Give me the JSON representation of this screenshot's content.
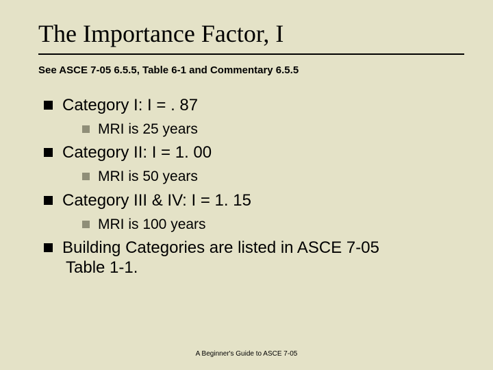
{
  "title": "The Importance Factor, I",
  "subtitle": "See ASCE 7-05 6.5.5, Table 6-1 and Commentary 6.5.5",
  "items": [
    {
      "level": 1,
      "text": "Category I: I = . 87"
    },
    {
      "level": 2,
      "text": "MRI is 25 years"
    },
    {
      "level": 1,
      "text": " Category II: I = 1. 00"
    },
    {
      "level": 2,
      "text": "MRI is 50 years"
    },
    {
      "level": 1,
      "text": " Category III & IV: I = 1. 15"
    },
    {
      "level": 2,
      "text": "MRI is 100 years"
    },
    {
      "level": 1,
      "text": " Building Categories are listed in ASCE 7-05",
      "cont": "Table 1-1."
    }
  ],
  "footer": "A Beginner's Guide to ASCE 7-05",
  "colors": {
    "background": "#e4e2c7",
    "bullet_l1": "#000000",
    "bullet_l2": "#8f8e78"
  }
}
